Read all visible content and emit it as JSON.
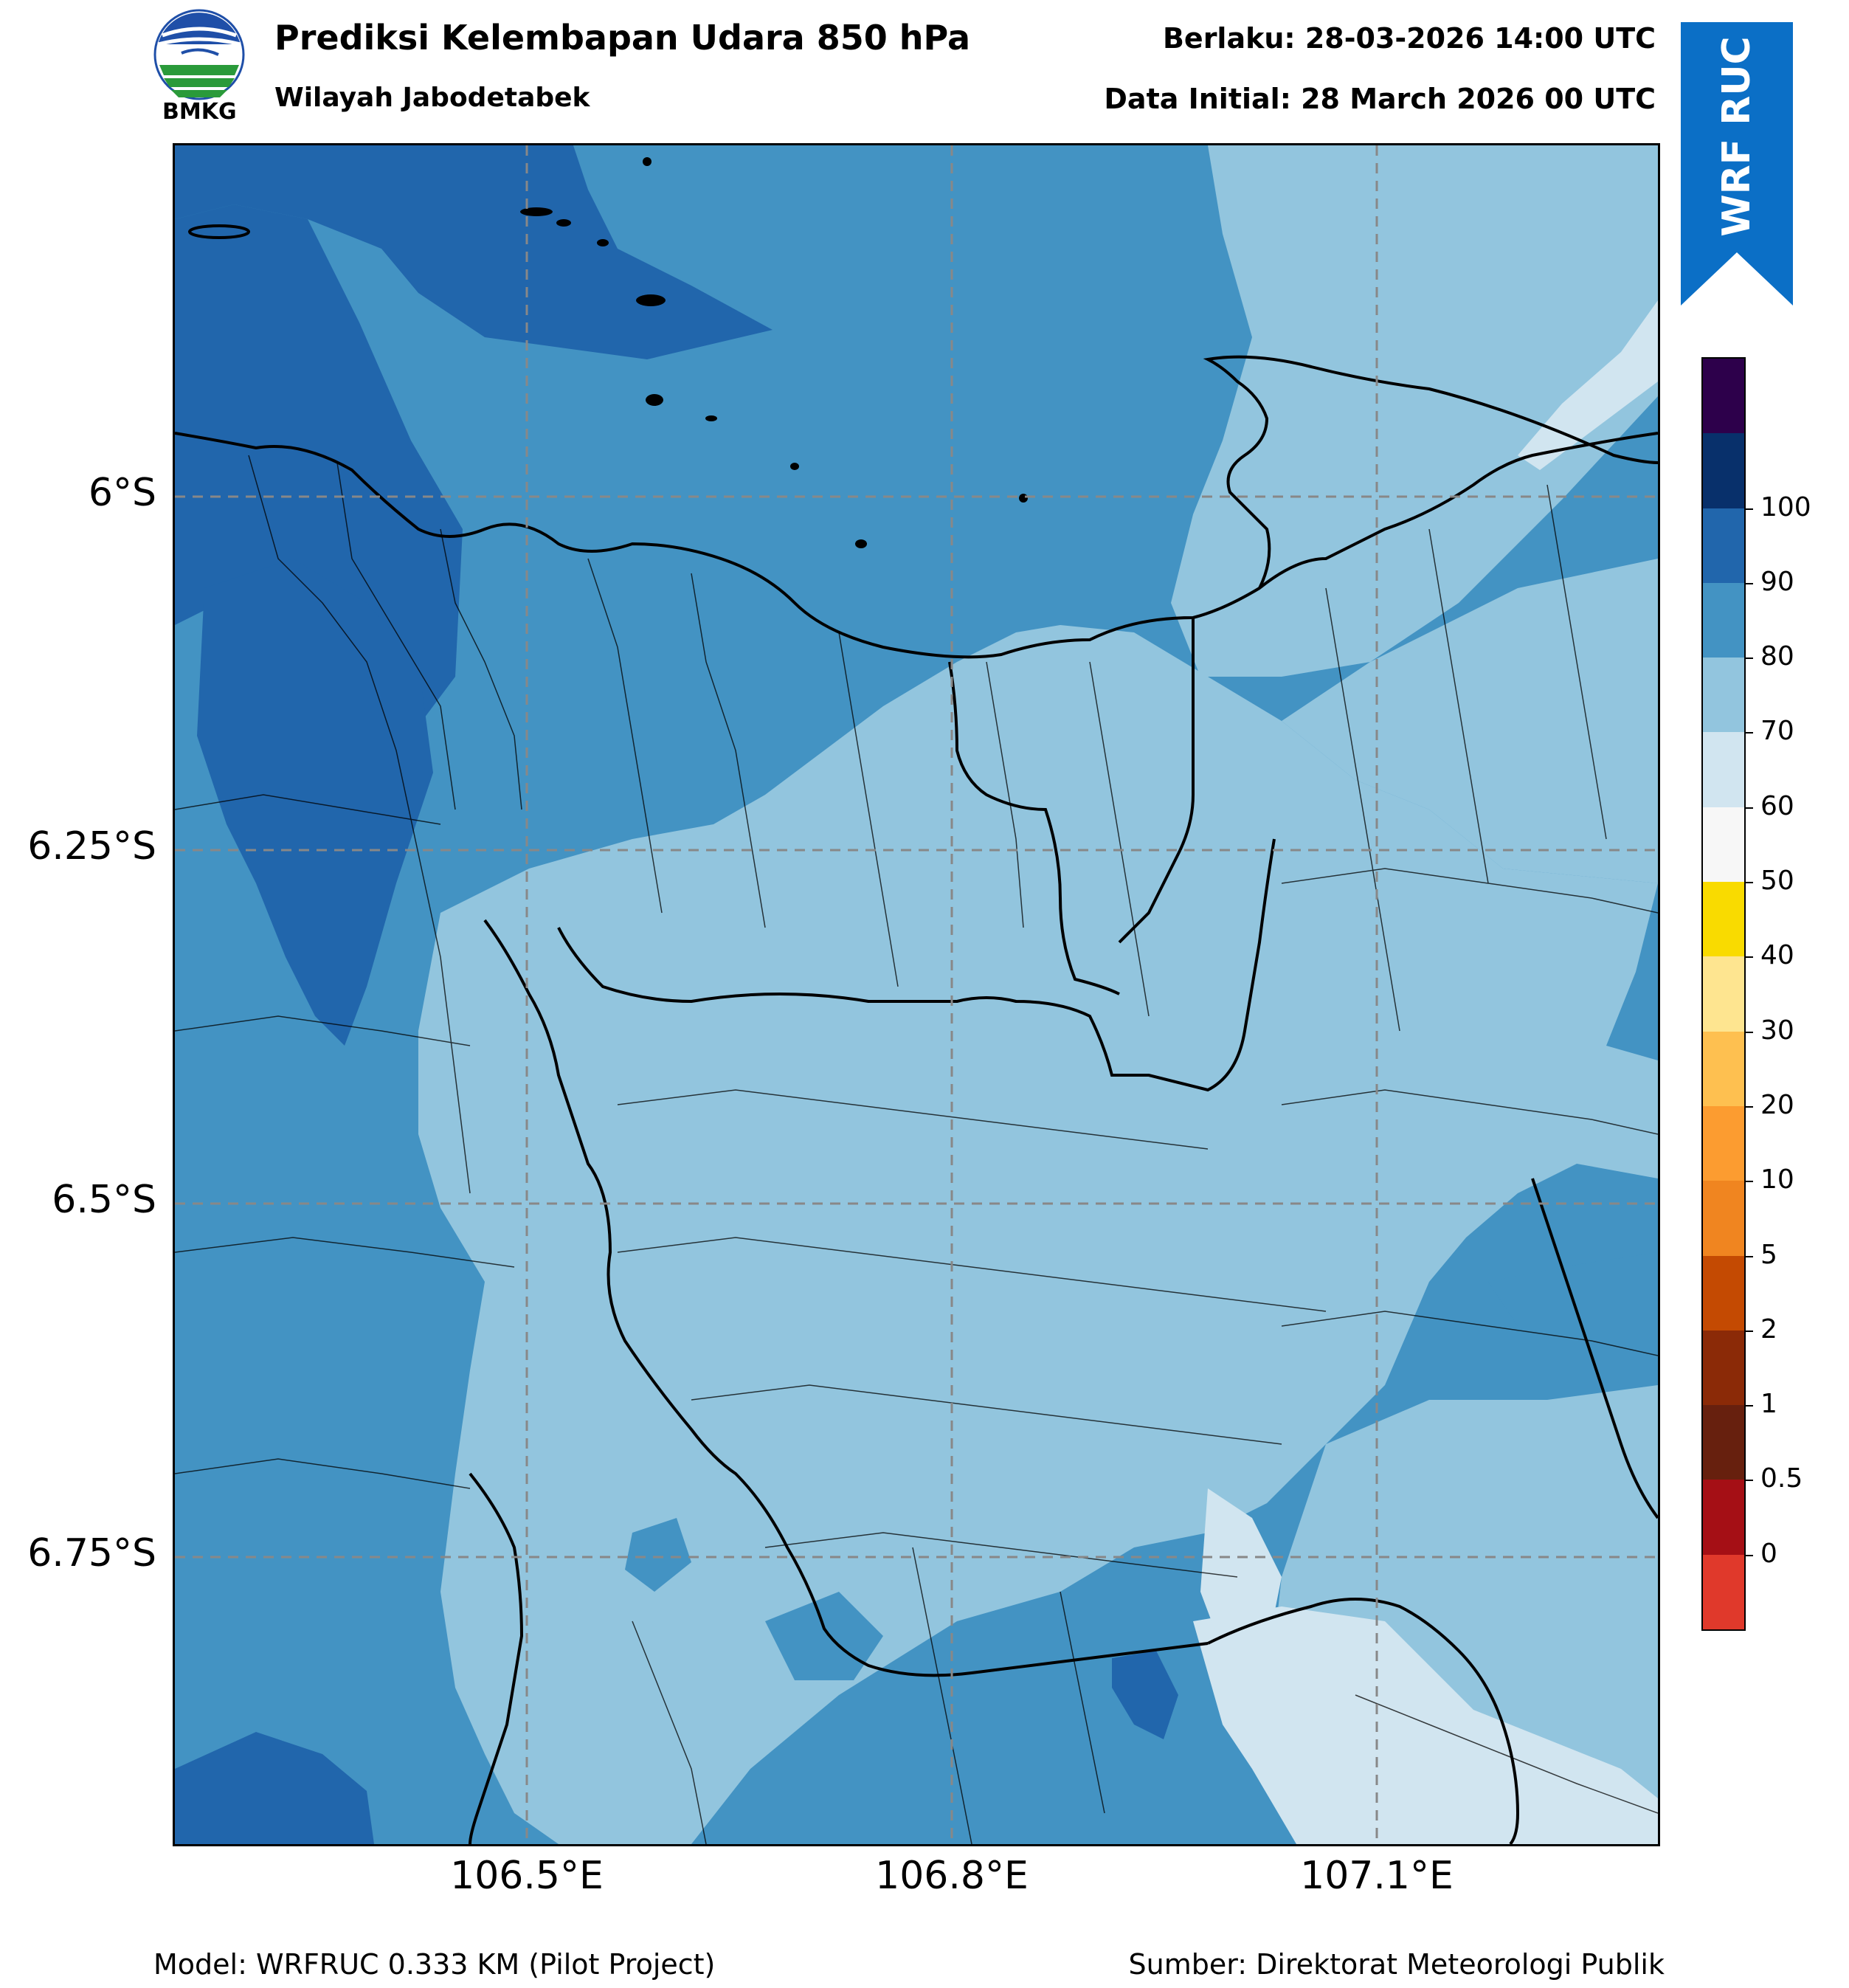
{
  "header": {
    "logo_text": "BMKG",
    "title": "Prediksi Kelembapan Udara 850 hPa",
    "region": "Wilayah Jabodetabek",
    "valid_time": "Berlaku: 28-03-2026 14:00 UTC",
    "initial_time": "Data Initial: 28 March 2026 00 UTC",
    "badge": "WRF RUC"
  },
  "map": {
    "lat_labels": [
      "6°S",
      "6.25°S",
      "6.5°S",
      "6.75°S"
    ],
    "lon_labels": [
      "106.5°E",
      "106.8°E",
      "107.1°E"
    ],
    "grid": true,
    "grid_style": "dashed-gray"
  },
  "colorbar": {
    "labels": [
      "0",
      "0.5",
      "1",
      "2",
      "5",
      "10",
      "20",
      "30",
      "40",
      "50",
      "60",
      "70",
      "80",
      "90",
      "100"
    ],
    "colors": [
      "#e0392b",
      "#a50f15",
      "#67200e",
      "#8b2a07",
      "#c44a02",
      "#f08520",
      "#fc9c30",
      "#fec050",
      "#fee590",
      "#f9db00",
      "#f7f7f7",
      "#d1e5f0",
      "#92c5de",
      "#4393c3",
      "#2166ac",
      "#08306b",
      "#2d004b"
    ]
  },
  "footer": {
    "model": "Model: WRFRUC 0.333 KM (Pilot Project)",
    "source": "Sumber: Direktorat Meteorologi Publik"
  },
  "palette": {
    "h50_60": "#d1e5f0",
    "h60_70": "#92c5de",
    "h70_80": "#4393c3",
    "h80_90": "#2166ac"
  }
}
